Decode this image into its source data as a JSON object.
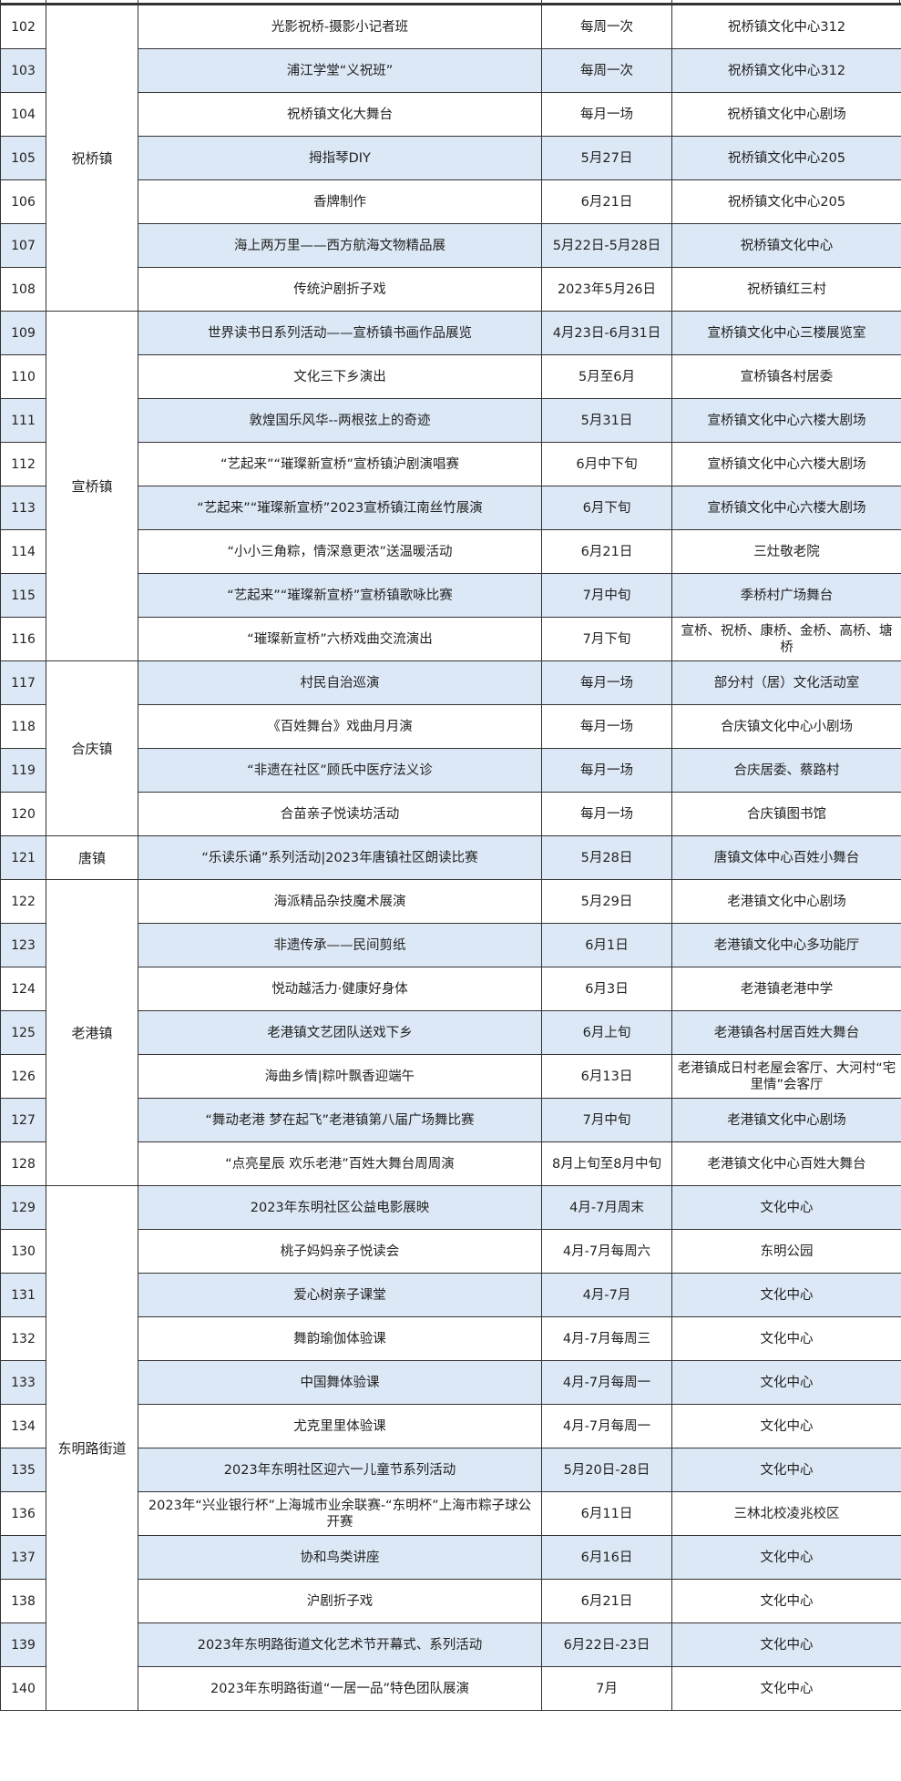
{
  "colors": {
    "row_shade": "#dce8f5",
    "border": "#333333"
  },
  "groups": [
    {
      "town": "祝桥镇",
      "rows": [
        {
          "no": "102",
          "activity": "光影祝桥-摄影小记者班",
          "time": "每周一次",
          "place": "祝桥镇文化中心312"
        },
        {
          "no": "103",
          "activity": "浦江学堂“义祝班”",
          "time": "每周一次",
          "place": "祝桥镇文化中心312"
        },
        {
          "no": "104",
          "activity": "祝桥镇文化大舞台",
          "time": "每月一场",
          "place": "祝桥镇文化中心剧场"
        },
        {
          "no": "105",
          "activity": "拇指琴DIY",
          "time": "5月27日",
          "place": "祝桥镇文化中心205"
        },
        {
          "no": "106",
          "activity": "香牌制作",
          "time": "6月21日",
          "place": "祝桥镇文化中心205"
        },
        {
          "no": "107",
          "activity": "海上两万里——西方航海文物精品展",
          "time": "5月22日-5月28日",
          "place": "祝桥镇文化中心"
        },
        {
          "no": "108",
          "activity": "传统沪剧折子戏",
          "time": "2023年5月26日",
          "place": "祝桥镇红三村"
        }
      ]
    },
    {
      "town": "宣桥镇",
      "rows": [
        {
          "no": "109",
          "activity": "世界读书日系列活动——宣桥镇书画作品展览",
          "time": "4月23日-6月31日",
          "place": "宣桥镇文化中心三楼展览室"
        },
        {
          "no": "110",
          "activity": "文化三下乡演出",
          "time": "5月至6月",
          "place": "宣桥镇各村居委"
        },
        {
          "no": "111",
          "activity": "敦煌国乐风华--两根弦上的奇迹",
          "time": "5月31日",
          "place": "宣桥镇文化中心六楼大剧场"
        },
        {
          "no": "112",
          "activity": "“艺起来”“璀璨新宣桥”宣桥镇沪剧演唱赛",
          "time": "6月中下旬",
          "place": "宣桥镇文化中心六楼大剧场"
        },
        {
          "no": "113",
          "activity": "“艺起来”“璀璨新宣桥”2023宣桥镇江南丝竹展演",
          "time": "6月下旬",
          "place": "宣桥镇文化中心六楼大剧场"
        },
        {
          "no": "114",
          "activity": "“小小三角粽，情深意更浓”送温暖活动",
          "time": "6月21日",
          "place": "三灶敬老院"
        },
        {
          "no": "115",
          "activity": "“艺起来”“璀璨新宣桥”宣桥镇歌咏比赛",
          "time": "7月中旬",
          "place": "季桥村广场舞台"
        },
        {
          "no": "116",
          "activity": "“璀璨新宣桥”六桥戏曲交流演出",
          "time": "7月下旬",
          "place": "宣桥、祝桥、康桥、金桥、高桥、塘桥"
        }
      ]
    },
    {
      "town": "合庆镇",
      "rows": [
        {
          "no": "117",
          "activity": "村民自治巡演",
          "time": "每月一场",
          "place": "部分村（居）文化活动室"
        },
        {
          "no": "118",
          "activity": "《百姓舞台》戏曲月月演",
          "time": "每月一场",
          "place": "合庆镇文化中心小剧场"
        },
        {
          "no": "119",
          "activity": "“非遗在社区”顾氏中医疗法义诊",
          "time": "每月一场",
          "place": "合庆居委、蔡路村"
        },
        {
          "no": "120",
          "activity": "合苗亲子悦读坊活动",
          "time": "每月一场",
          "place": "合庆镇图书馆"
        }
      ]
    },
    {
      "town": "唐镇",
      "rows": [
        {
          "no": "121",
          "activity": "“乐读乐诵”系列活动|2023年唐镇社区朗读比赛",
          "time": "5月28日",
          "place": "唐镇文体中心百姓小舞台"
        }
      ]
    },
    {
      "town": "老港镇",
      "rows": [
        {
          "no": "122",
          "activity": "海派精品杂技魔术展演",
          "time": "5月29日",
          "place": "老港镇文化中心剧场"
        },
        {
          "no": "123",
          "activity": "非遗传承——民间剪纸",
          "time": "6月1日",
          "place": "老港镇文化中心多功能厅"
        },
        {
          "no": "124",
          "activity": "悦动越活力·健康好身体",
          "time": "6月3日",
          "place": "老港镇老港中学"
        },
        {
          "no": "125",
          "activity": "老港镇文艺团队送戏下乡",
          "time": "6月上旬",
          "place": "老港镇各村居百姓大舞台"
        },
        {
          "no": "126",
          "activity": "海曲乡情|粽叶飘香迎端午",
          "time": "6月13日",
          "place": "老港镇成日村老屋会客厅、大河村“宅里情”会客厅"
        },
        {
          "no": "127",
          "activity": "“舞动老港 梦在起飞”老港镇第八届广场舞比赛",
          "time": "7月中旬",
          "place": "老港镇文化中心剧场"
        },
        {
          "no": "128",
          "activity": "“点亮星辰 欢乐老港”百姓大舞台周周演",
          "time": "8月上旬至8月中旬",
          "place": "老港镇文化中心百姓大舞台"
        }
      ]
    },
    {
      "town": "东明路街道",
      "rows": [
        {
          "no": "129",
          "activity": "2023年东明社区公益电影展映",
          "time": "4月-7月周末",
          "place": "文化中心"
        },
        {
          "no": "130",
          "activity": "桃子妈妈亲子悦读会",
          "time": "4月-7月每周六",
          "place": "东明公园"
        },
        {
          "no": "131",
          "activity": "爱心树亲子课堂",
          "time": "4月-7月",
          "place": "文化中心"
        },
        {
          "no": "132",
          "activity": "舞韵瑜伽体验课",
          "time": "4月-7月每周三",
          "place": "文化中心"
        },
        {
          "no": "133",
          "activity": "中国舞体验课",
          "time": "4月-7月每周一",
          "place": "文化中心"
        },
        {
          "no": "134",
          "activity": "尤克里里体验课",
          "time": "4月-7月每周一",
          "place": "文化中心"
        },
        {
          "no": "135",
          "activity": "2023年东明社区迎六一儿童节系列活动",
          "time": "5月20日-28日",
          "place": "文化中心"
        },
        {
          "no": "136",
          "activity": "2023年“兴业银行杯”上海城市业余联赛-“东明杯”上海市粽子球公开赛",
          "time": "6月11日",
          "place": "三林北校凌兆校区"
        },
        {
          "no": "137",
          "activity": "协和鸟类讲座",
          "time": "6月16日",
          "place": "文化中心"
        },
        {
          "no": "138",
          "activity": "沪剧折子戏",
          "time": "6月21日",
          "place": "文化中心"
        },
        {
          "no": "139",
          "activity": "2023年东明路街道文化艺术节开幕式、系列活动",
          "time": "6月22日-23日",
          "place": "文化中心"
        },
        {
          "no": "140",
          "activity": "2023年东明路街道“一居一品”特色团队展演",
          "time": "7月",
          "place": "文化中心"
        }
      ]
    }
  ]
}
